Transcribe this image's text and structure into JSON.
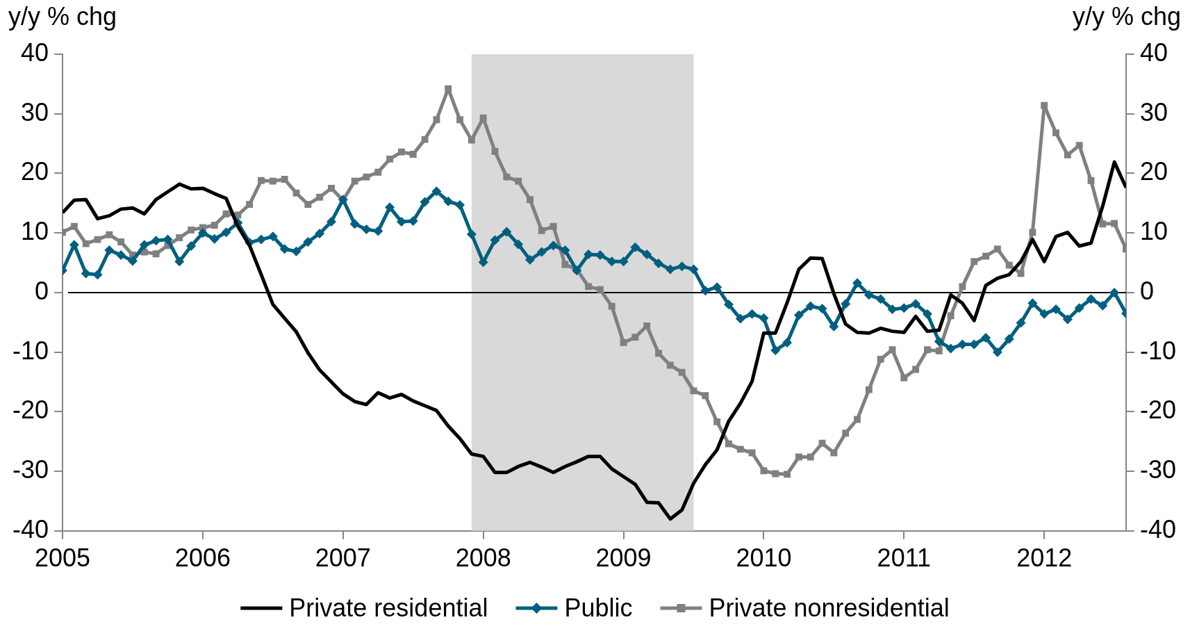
{
  "chart_data": {
    "type": "line",
    "ylabel": "y/y % chg",
    "y2label": "y/y % chg",
    "x": [
      "2005-01",
      "2005-02",
      "2005-03",
      "2005-04",
      "2005-05",
      "2005-06",
      "2005-07",
      "2005-08",
      "2005-09",
      "2005-10",
      "2005-11",
      "2005-12",
      "2006-01",
      "2006-02",
      "2006-03",
      "2006-04",
      "2006-05",
      "2006-06",
      "2006-07",
      "2006-08",
      "2006-09",
      "2006-10",
      "2006-11",
      "2006-12",
      "2007-01",
      "2007-02",
      "2007-03",
      "2007-04",
      "2007-05",
      "2007-06",
      "2007-07",
      "2007-08",
      "2007-09",
      "2007-10",
      "2007-11",
      "2007-12",
      "2008-01",
      "2008-02",
      "2008-03",
      "2008-04",
      "2008-05",
      "2008-06",
      "2008-07",
      "2008-08",
      "2008-09",
      "2008-10",
      "2008-11",
      "2008-12",
      "2009-01",
      "2009-02",
      "2009-03",
      "2009-04",
      "2009-05",
      "2009-06",
      "2009-07",
      "2009-08",
      "2009-09",
      "2009-10",
      "2009-11",
      "2009-12",
      "2010-01",
      "2010-02",
      "2010-03",
      "2010-04",
      "2010-05",
      "2010-06",
      "2010-07",
      "2010-08",
      "2010-09",
      "2010-10",
      "2010-11",
      "2010-12",
      "2011-01",
      "2011-02",
      "2011-03",
      "2011-04",
      "2011-05",
      "2011-06",
      "2011-07",
      "2011-08",
      "2011-09",
      "2011-10",
      "2011-11",
      "2011-12",
      "2012-01",
      "2012-02",
      "2012-03",
      "2012-04",
      "2012-05",
      "2012-06",
      "2012-07",
      "2012-08"
    ],
    "series": [
      {
        "name": "Private residential",
        "color": "#000000",
        "marker": "none",
        "values": [
          13.4,
          15.5,
          15.6,
          12.4,
          12.9,
          14,
          14.2,
          13.2,
          15.6,
          16.9,
          18.2,
          17.4,
          17.5,
          16.6,
          15.8,
          11.1,
          7.9,
          3,
          -2,
          -4.3,
          -6.6,
          -10.1,
          -13,
          -15,
          -17,
          -18.3,
          -18.8,
          -16.8,
          -17.7,
          -17.1,
          -18.2,
          -19,
          -19.8,
          -22.4,
          -24.5,
          -27.1,
          -27.5,
          -30.2,
          -30.2,
          -29.2,
          -28.5,
          -29.3,
          -30.2,
          -29.2,
          -28.4,
          -27.5,
          -27.5,
          -29.6,
          -30.9,
          -32.2,
          -35.2,
          -35.3,
          -38,
          -36.5,
          -32,
          -28.9,
          -26.4,
          -21.6,
          -18.6,
          -14.9,
          -6.8,
          -6.8,
          -1.7,
          3.9,
          5.8,
          5.7,
          -0.2,
          -5.3,
          -6.7,
          -6.8,
          -6,
          -6.5,
          -6.7,
          -4,
          -6.5,
          -6.3,
          -0.4,
          -1.8,
          -4.7,
          1.2,
          2.4,
          3,
          5.2,
          8.9,
          5.2,
          9.4,
          10.1,
          7.8,
          8.3,
          14.5,
          21.9,
          17.6
        ]
      },
      {
        "name": "Public",
        "color": "#005f7f",
        "marker": "diamond",
        "values": [
          3.7,
          8,
          3.2,
          3,
          7.1,
          6.3,
          5.3,
          8,
          8.7,
          8.9,
          5.2,
          7.8,
          10,
          9,
          10.1,
          11.7,
          8.4,
          8.9,
          9.4,
          7.3,
          6.9,
          8.5,
          9.9,
          11.9,
          15.6,
          11.5,
          10.6,
          10.3,
          14.3,
          11.9,
          12,
          15.2,
          17,
          15.3,
          14.7,
          9.8,
          5.1,
          8.8,
          10.2,
          8.1,
          5.5,
          6.8,
          7.9,
          7.1,
          3.7,
          6.4,
          6.3,
          5.2,
          5.2,
          7.6,
          6.4,
          4.9,
          3.9,
          4.4,
          3.9,
          0.3,
          0.9,
          -2,
          -4.4,
          -3.6,
          -4.3,
          -9.7,
          -8.4,
          -3.8,
          -2.3,
          -2.7,
          -5.7,
          -1.9,
          1.6,
          -0.4,
          -1.1,
          -2.8,
          -2.6,
          -1.9,
          -3.6,
          -8.2,
          -9.4,
          -8.7,
          -8.7,
          -7.6,
          -10,
          -7.8,
          -5.1,
          -1.8,
          -3.6,
          -2.8,
          -4.5,
          -2.6,
          -1.1,
          -2.2,
          0,
          -3.5
        ]
      },
      {
        "name": "Private nonresidential",
        "color": "#808080",
        "marker": "square",
        "values": [
          10.1,
          11.1,
          8.2,
          8.9,
          9.7,
          8.5,
          6.3,
          6.8,
          6.5,
          7.9,
          9.2,
          10.5,
          10.9,
          11.3,
          13.2,
          13,
          14.8,
          18.8,
          18.7,
          19,
          16.7,
          14.8,
          16,
          17.5,
          15.5,
          18.7,
          19.4,
          20.2,
          22.4,
          23.6,
          23.2,
          25.7,
          29,
          34.2,
          29,
          25.6,
          29.3,
          23.7,
          19.4,
          18.7,
          15.6,
          10.4,
          11.1,
          4.7,
          3.9,
          1,
          0.5,
          -2.3,
          -8.4,
          -7.5,
          -5.6,
          -10.2,
          -12.2,
          -13.4,
          -16.5,
          -17.3,
          -21.7,
          -25.4,
          -26.3,
          -26.9,
          -29.9,
          -30.4,
          -30.5,
          -27.6,
          -27.6,
          -25.3,
          -26.9,
          -23.6,
          -21.3,
          -16.3,
          -11.2,
          -9.6,
          -14.3,
          -12.9,
          -9.6,
          -9.8,
          -3.9,
          1,
          5.2,
          6.1,
          7.3,
          4.6,
          3.2,
          10.1,
          31.4,
          26.8,
          23.1,
          24.7,
          18.8,
          11.5,
          11.6,
          7.3
        ]
      }
    ],
    "xlim": [
      "2005",
      "2012-08"
    ],
    "xticks": [
      "2005",
      "2006",
      "2007",
      "2008",
      "2009",
      "2010",
      "2011",
      "2012"
    ],
    "ylim": [
      -40,
      40
    ],
    "yticks": [
      -40,
      -30,
      -20,
      -10,
      0,
      10,
      20,
      30,
      40
    ],
    "y2lim": [
      -40,
      40
    ],
    "y2ticks": [
      -40,
      -30,
      -20,
      -10,
      0,
      10,
      20,
      30,
      40
    ],
    "ref_lines": [
      {
        "axis": "y",
        "value": 0,
        "color": "#000000"
      }
    ],
    "bands": [
      {
        "axis": "x",
        "from": "2007-12",
        "to": "2009-07",
        "color": "#d9d9d9"
      }
    ],
    "grid": false,
    "legend": "bottom"
  }
}
